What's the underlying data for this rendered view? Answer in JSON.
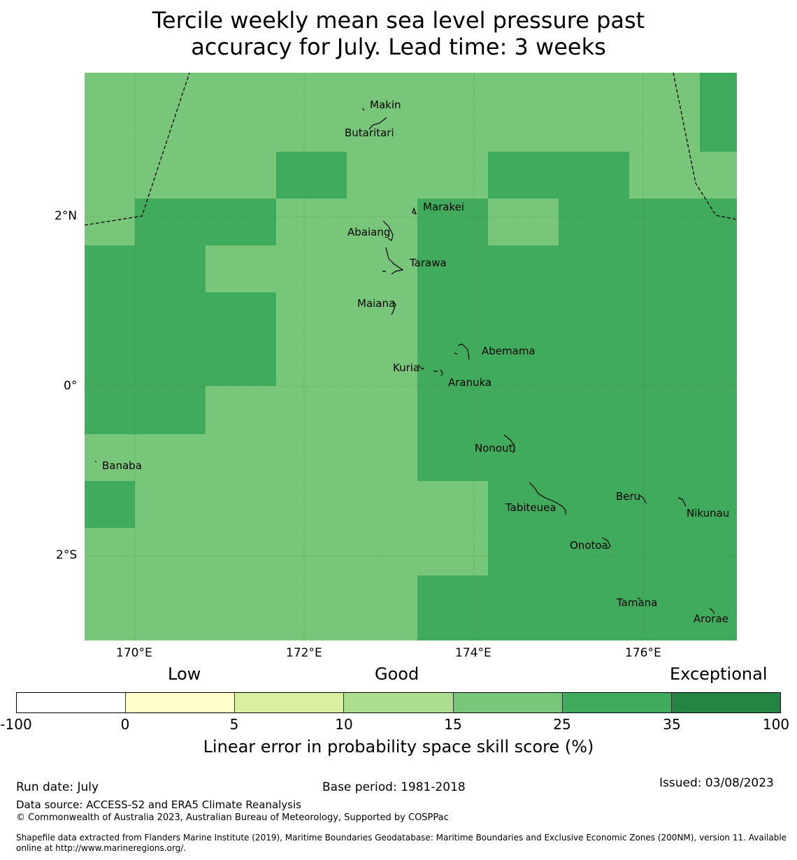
{
  "title": {
    "line1": "Tercile weekly mean sea level pressure past",
    "line2": "accuracy for July. Lead time: 3 weeks"
  },
  "map": {
    "lon_ticks": [
      "170°E",
      "172°E",
      "174°E",
      "176°E"
    ],
    "lat_ticks": [
      "2°N",
      "0°",
      "2°S"
    ],
    "islands": [
      "Makin",
      "Butaritari",
      "Marakei",
      "Abaiang",
      "Tarawa",
      "Maiana",
      "Abemama",
      "Kuria",
      "Aranuka",
      "Banaba",
      "Nonouti",
      "Tabiteuea",
      "Beru",
      "Nikunau",
      "Onotoa",
      "Tamana",
      "Arorae"
    ],
    "skill_colors": {
      "15-25": "#78c679",
      "25-35": "#41ab5d"
    }
  },
  "colorbar": {
    "categories": {
      "low": "Low",
      "good": "Good",
      "exceptional": "Exceptional"
    },
    "ticks": [
      "-100",
      "0",
      "5",
      "10",
      "15",
      "25",
      "35",
      "100"
    ],
    "colors": [
      "#ffffff",
      "#ffffcc",
      "#d9f0a3",
      "#addd8e",
      "#78c679",
      "#41ab5d",
      "#238443"
    ],
    "label": "Linear error in probability space skill score (%)"
  },
  "footer": {
    "run_date": "Run date: July",
    "base_period": "Base period: 1981-2018",
    "issued": "Issued: 03/08/2023",
    "data_source": "Data source: ACCESS-S2 and ERA5 Climate Reanalysis",
    "copyright": "© Commonwealth of Australia 2023, Australian Bureau of Meteorology, Supported by COSPPac",
    "shapefile": "Shapefile data extracted from Flanders Marine Institute (2019), Maritime Boundaries Geodatabase: Maritime Boundaries and Exclusive Economic Zones (200NM), version 11. Available online at http://www.marineregions.org/."
  }
}
